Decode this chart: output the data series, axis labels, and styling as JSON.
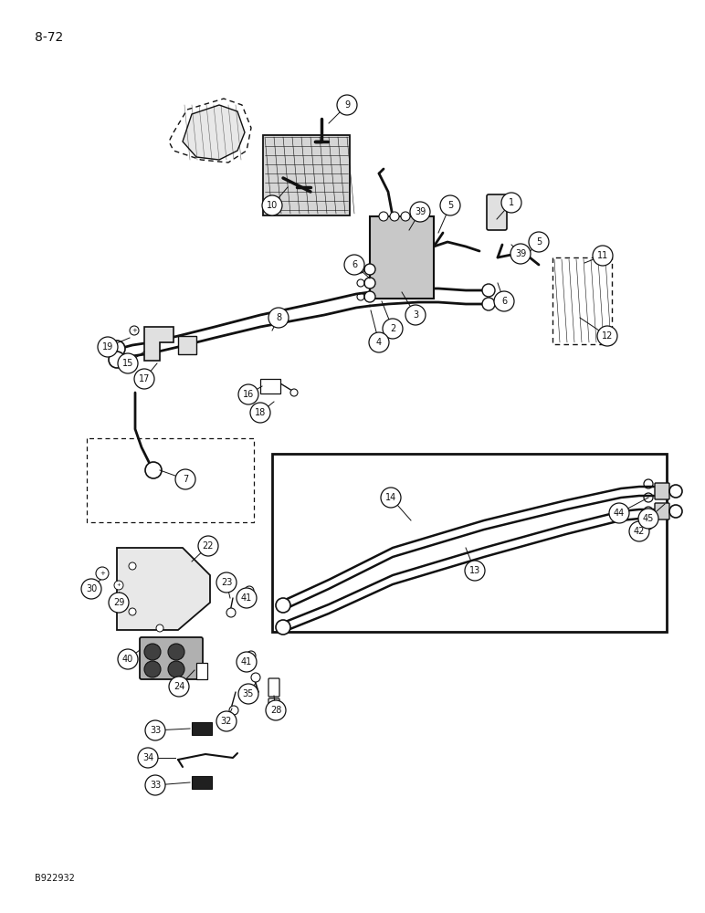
{
  "page_number": "8-72",
  "figure_id": "B922932",
  "bg": "#ffffff",
  "lc": "#111111",
  "fig_w": 7.72,
  "fig_h": 10.0
}
